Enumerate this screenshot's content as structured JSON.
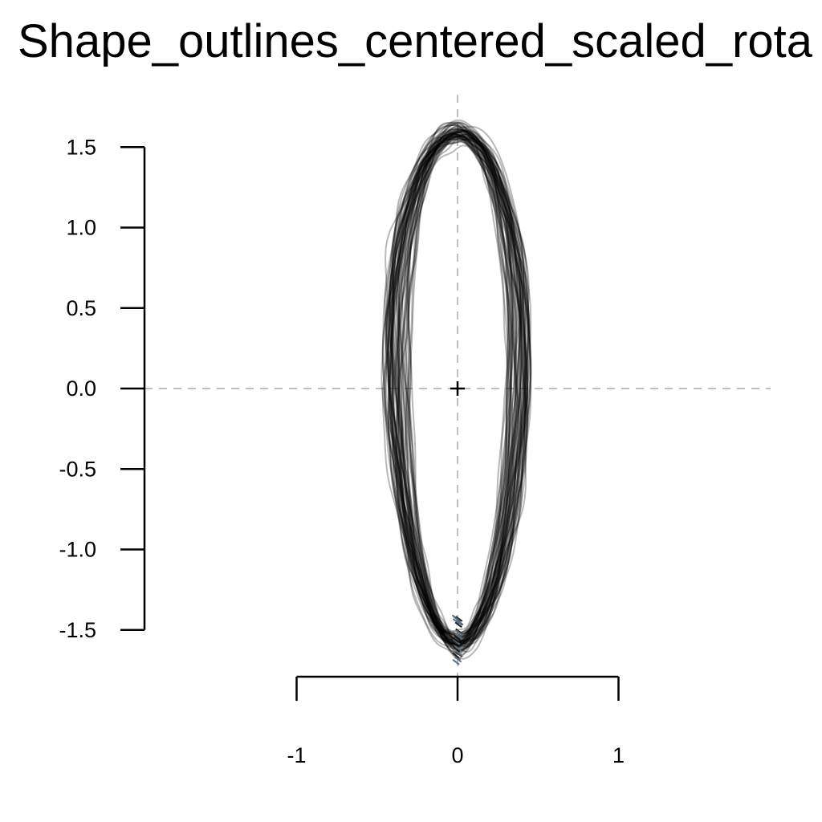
{
  "chart_data": {
    "type": "line",
    "title": "Shape_outlines_centered_scaled_rota",
    "xlabel": "",
    "ylabel": "",
    "xlim": [
      -1.95,
      1.95
    ],
    "ylim": [
      -1.65,
      1.65
    ],
    "x_ticks": [
      -1,
      0,
      1
    ],
    "x_tick_labels": [
      "-1",
      "0",
      "1"
    ],
    "y_ticks": [
      1.5,
      1.0,
      0.5,
      0.0,
      -0.5,
      -1.0,
      -1.5
    ],
    "y_tick_labels": [
      "1.5",
      "1.0",
      "0.5",
      "0.0",
      "-0.5",
      "-1.0",
      "-1.5"
    ],
    "grid": false,
    "reference_lines": [
      {
        "orientation": "horizontal",
        "value": 0,
        "style": "dashed",
        "color": "#bfbfbf"
      },
      {
        "orientation": "vertical",
        "value": 0,
        "style": "dashed",
        "color": "#bfbfbf"
      }
    ],
    "centroid": {
      "x": 0,
      "y": 0,
      "marker": "+"
    },
    "outline_color": "#000000",
    "outline_opacity": 0.28,
    "outline_count": 60,
    "outline_points_per_shape": 180,
    "outline_mean": {
      "half_width": 0.37,
      "half_height": 1.6
    },
    "landmark": {
      "x": 0,
      "y": -1.6
    }
  }
}
